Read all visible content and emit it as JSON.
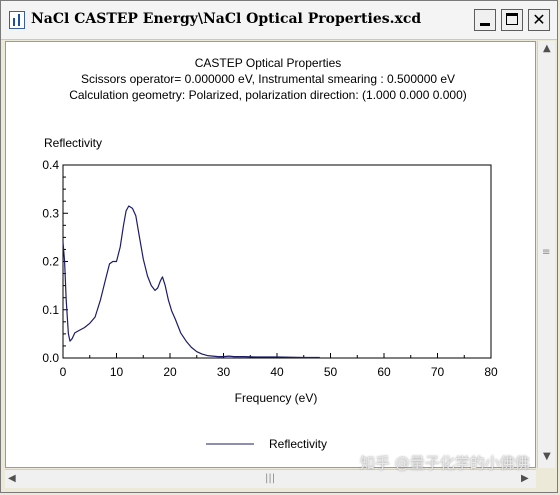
{
  "window": {
    "title": "NaCl CASTEP Energy\\NaCl Optical Properties.xcd",
    "icon": "chart-file-icon"
  },
  "watermark": "知乎 @量子化学的小佛佛",
  "chart_data": {
    "type": "line",
    "title": "CASTEP Optical Properties",
    "subtitle_lines": [
      "Scissors operator= 0.000000 eV, Instrumental smearing : 0.500000 eV",
      "Calculation geometry: Polarized, polarization direction: (1.000 0.000 0.000)"
    ],
    "xlabel": "Frequency (eV)",
    "ylabel": "Reflectivity",
    "xlim": [
      0,
      80
    ],
    "ylim": [
      0,
      0.4
    ],
    "x_ticks": [
      "0",
      "10",
      "20",
      "30",
      "40",
      "50",
      "60",
      "70",
      "80"
    ],
    "y_ticks": [
      "0.0",
      "0.1",
      "0.2",
      "0.3",
      "0.4"
    ],
    "grid": false,
    "legend_position": "bottom-center",
    "series": [
      {
        "name": "Reflectivity",
        "color": "#1c1c6b",
        "points": [
          [
            0.0,
            0.24
          ],
          [
            0.3,
            0.2
          ],
          [
            0.6,
            0.12
          ],
          [
            1.0,
            0.05
          ],
          [
            1.3,
            0.035
          ],
          [
            1.7,
            0.04
          ],
          [
            2.2,
            0.052
          ],
          [
            3.0,
            0.057
          ],
          [
            4.0,
            0.063
          ],
          [
            5.0,
            0.072
          ],
          [
            6.0,
            0.085
          ],
          [
            7.0,
            0.12
          ],
          [
            8.0,
            0.165
          ],
          [
            8.7,
            0.195
          ],
          [
            9.3,
            0.2
          ],
          [
            10.0,
            0.2
          ],
          [
            10.7,
            0.23
          ],
          [
            11.3,
            0.275
          ],
          [
            11.8,
            0.305
          ],
          [
            12.3,
            0.315
          ],
          [
            13.0,
            0.31
          ],
          [
            13.6,
            0.295
          ],
          [
            14.3,
            0.25
          ],
          [
            15.0,
            0.205
          ],
          [
            15.8,
            0.17
          ],
          [
            16.5,
            0.15
          ],
          [
            17.2,
            0.14
          ],
          [
            17.7,
            0.145
          ],
          [
            18.2,
            0.16
          ],
          [
            18.6,
            0.168
          ],
          [
            19.1,
            0.15
          ],
          [
            19.7,
            0.12
          ],
          [
            20.3,
            0.098
          ],
          [
            21.0,
            0.08
          ],
          [
            22.0,
            0.052
          ],
          [
            23.0,
            0.035
          ],
          [
            24.0,
            0.022
          ],
          [
            25.0,
            0.013
          ],
          [
            26.0,
            0.008
          ],
          [
            27.0,
            0.005
          ],
          [
            28.0,
            0.004
          ],
          [
            29.0,
            0.003
          ],
          [
            30.0,
            0.003
          ],
          [
            31.0,
            0.004
          ],
          [
            32.0,
            0.003
          ],
          [
            34.0,
            0.003
          ],
          [
            36.0,
            0.002
          ],
          [
            40.0,
            0.002
          ],
          [
            45.0,
            0.001
          ],
          [
            48.0,
            0.001
          ]
        ]
      }
    ]
  }
}
